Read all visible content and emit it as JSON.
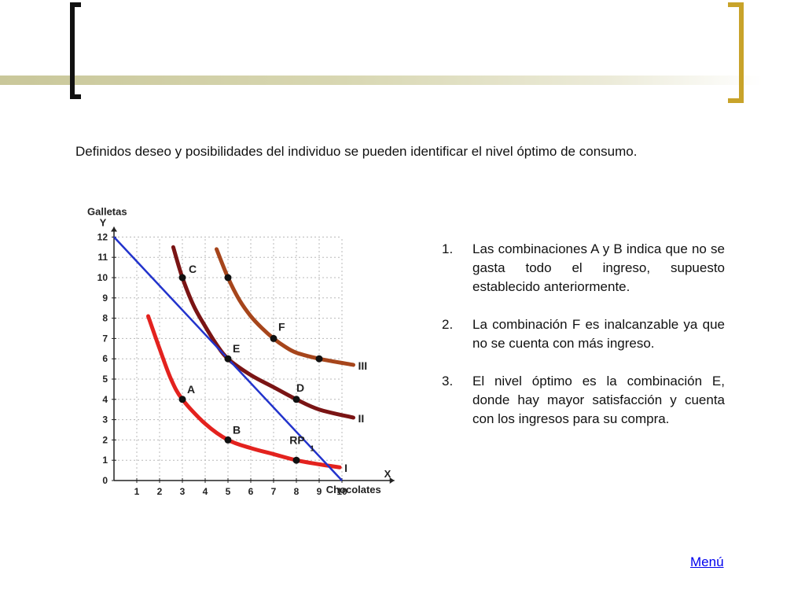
{
  "intro_text": "Definidos deseo y posibilidades del individuo se pueden identificar el nivel óptimo de consumo.",
  "colors": {
    "left_bracket": "#111111",
    "right_bracket": "#c8a32a",
    "title_band": "#c9c79a",
    "budget_line": "#2233cc",
    "curve_I": "#e3221e",
    "curve_II": "#7a1414",
    "curve_III": "#a6451b",
    "link": "#0000ee"
  },
  "points": [
    {
      "number": "1.",
      "text": "Las combinaciones A y B indica que no se gasta todo el ingreso, supuesto establecido anteriormente."
    },
    {
      "number": "2.",
      "text": "La combinación F es inalcanzable ya que no se cuenta con más ingreso."
    },
    {
      "number": "3.",
      "text": "El nivel óptimo es la combinación E, donde hay mayor satisfacción y cuenta con los ingresos para su compra."
    }
  ],
  "menu_link": "Menú",
  "chart_data": {
    "type": "line",
    "ylabel": "Galletas",
    "ylabel_axis": "Y",
    "xlabel": "Chocolates",
    "xlabel_axis": "X",
    "x_ticks": [
      "1",
      "2",
      "3",
      "4",
      "5",
      "6",
      "7",
      "8",
      "9",
      "10"
    ],
    "y_ticks": [
      "0",
      "1",
      "2",
      "3",
      "4",
      "5",
      "6",
      "7",
      "8",
      "9",
      "10",
      "11",
      "12"
    ],
    "xlim": [
      0,
      12
    ],
    "ylim": [
      0,
      12
    ],
    "grid": "dotted-guides",
    "budget_line": {
      "label": "RP",
      "subscript": "1",
      "x": [
        0,
        10
      ],
      "y": [
        12,
        0
      ]
    },
    "curves": [
      {
        "label": "I",
        "x": [
          1.5,
          2,
          2.5,
          3,
          4,
          5,
          6,
          7,
          8,
          9,
          9.9
        ],
        "y": [
          8.1,
          6.5,
          5,
          4,
          2.8,
          2,
          1.6,
          1.3,
          1,
          0.8,
          0.65
        ]
      },
      {
        "label": "II",
        "x": [
          2.6,
          3,
          3.5,
          4,
          4.5,
          5,
          6,
          7,
          8,
          9,
          10.5
        ],
        "y": [
          11.5,
          10,
          8.6,
          7.6,
          6.7,
          6,
          5.2,
          4.6,
          4,
          3.5,
          3.1
        ]
      },
      {
        "label": "III",
        "x": [
          4.5,
          5,
          5.5,
          6,
          6.5,
          7,
          7.5,
          8,
          9,
          10.5
        ],
        "y": [
          11.4,
          10,
          8.9,
          8.1,
          7.5,
          7,
          6.6,
          6.3,
          6,
          5.7
        ]
      }
    ],
    "points": [
      {
        "label": "A",
        "x": 3,
        "y": 4
      },
      {
        "label": "B",
        "x": 5,
        "y": 2
      },
      {
        "label": "C",
        "x": 3,
        "y": 10
      },
      {
        "label": "D",
        "x": 8,
        "y": 4
      },
      {
        "label": "E",
        "x": 5,
        "y": 6
      },
      {
        "label": "F",
        "x": 7,
        "y": 7
      },
      {
        "label": "",
        "x": 5,
        "y": 10
      },
      {
        "label": "",
        "x": 9,
        "y": 6
      },
      {
        "label": "",
        "x": 8,
        "y": 1
      }
    ]
  }
}
